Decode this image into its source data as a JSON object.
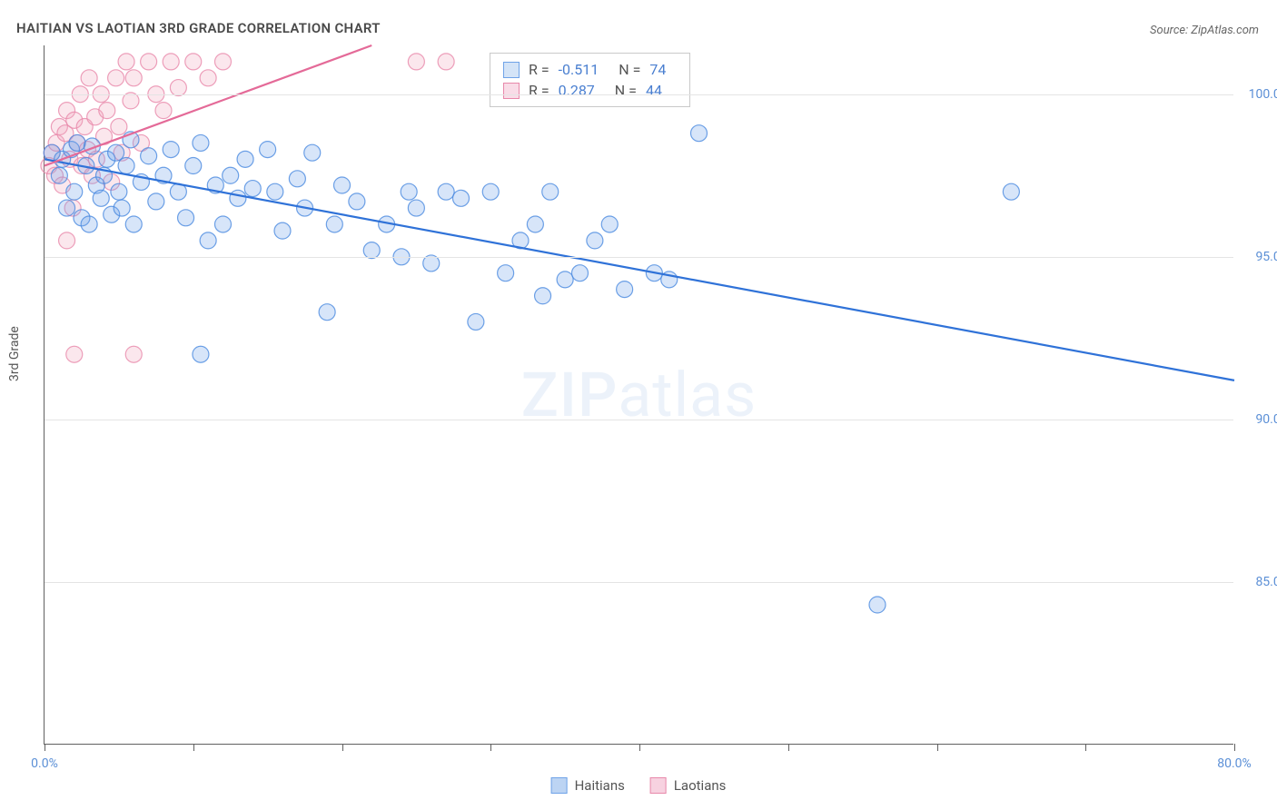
{
  "title": "HAITIAN VS LAOTIAN 3RD GRADE CORRELATION CHART",
  "source": "Source: ZipAtlas.com",
  "ylabel": "3rd Grade",
  "watermark_zip": "ZIP",
  "watermark_atlas": "atlas",
  "chart": {
    "type": "scatter",
    "xlim": [
      0,
      80
    ],
    "ylim": [
      80,
      101.5
    ],
    "x_ticks": [
      0,
      10,
      20,
      30,
      40,
      50,
      60,
      70,
      80
    ],
    "x_tick_labels": {
      "0": "0.0%",
      "80": "80.0%"
    },
    "y_gridlines": [
      85,
      90,
      95,
      100
    ],
    "y_tick_labels": {
      "85": "85.0%",
      "90": "90.0%",
      "95": "95.0%",
      "100": "100.0%"
    },
    "grid_color": "#e4e4e4",
    "axis_color": "#606060",
    "background_color": "#ffffff",
    "marker_radius": 9,
    "marker_fill_opacity": 0.28,
    "marker_stroke_opacity": 0.8,
    "marker_stroke_width": 1.2,
    "trend_line_width": 2.2,
    "series": [
      {
        "name": "Haitians",
        "color": "#6fa3e8",
        "stroke": "#4a8ae0",
        "trend_color": "#2f72d8",
        "R": "-0.511",
        "N": "74",
        "trend": {
          "x1": 0,
          "y1": 98.0,
          "x2": 80,
          "y2": 91.2
        },
        "points": [
          [
            0.5,
            98.2
          ],
          [
            1.0,
            97.5
          ],
          [
            1.2,
            98.0
          ],
          [
            1.5,
            96.5
          ],
          [
            1.8,
            98.3
          ],
          [
            2.0,
            97.0
          ],
          [
            2.2,
            98.5
          ],
          [
            2.5,
            96.2
          ],
          [
            2.8,
            97.8
          ],
          [
            3.0,
            96.0
          ],
          [
            3.2,
            98.4
          ],
          [
            3.5,
            97.2
          ],
          [
            3.8,
            96.8
          ],
          [
            4.0,
            97.5
          ],
          [
            4.2,
            98.0
          ],
          [
            4.5,
            96.3
          ],
          [
            4.8,
            98.2
          ],
          [
            5.0,
            97.0
          ],
          [
            5.2,
            96.5
          ],
          [
            5.5,
            97.8
          ],
          [
            5.8,
            98.6
          ],
          [
            6.0,
            96.0
          ],
          [
            6.5,
            97.3
          ],
          [
            7.0,
            98.1
          ],
          [
            7.5,
            96.7
          ],
          [
            8.0,
            97.5
          ],
          [
            8.5,
            98.3
          ],
          [
            9.0,
            97.0
          ],
          [
            9.5,
            96.2
          ],
          [
            10.0,
            97.8
          ],
          [
            10.5,
            98.5
          ],
          [
            11.0,
            95.5
          ],
          [
            11.5,
            97.2
          ],
          [
            12.0,
            96.0
          ],
          [
            12.5,
            97.5
          ],
          [
            13.0,
            96.8
          ],
          [
            13.5,
            98.0
          ],
          [
            14.0,
            97.1
          ],
          [
            15.0,
            98.3
          ],
          [
            15.5,
            97.0
          ],
          [
            16.0,
            95.8
          ],
          [
            17.0,
            97.4
          ],
          [
            17.5,
            96.5
          ],
          [
            18.0,
            98.2
          ],
          [
            19.0,
            93.3
          ],
          [
            19.5,
            96.0
          ],
          [
            20.0,
            97.2
          ],
          [
            21.0,
            96.7
          ],
          [
            22.0,
            95.2
          ],
          [
            23.0,
            96.0
          ],
          [
            24.0,
            95.0
          ],
          [
            24.5,
            97.0
          ],
          [
            25.0,
            96.5
          ],
          [
            26.0,
            94.8
          ],
          [
            27.0,
            97.0
          ],
          [
            28.0,
            96.8
          ],
          [
            29.0,
            93.0
          ],
          [
            30.0,
            97.0
          ],
          [
            31.0,
            94.5
          ],
          [
            32.0,
            95.5
          ],
          [
            33.0,
            96.0
          ],
          [
            33.5,
            93.8
          ],
          [
            34.0,
            97.0
          ],
          [
            35.0,
            94.3
          ],
          [
            36.0,
            94.5
          ],
          [
            37.0,
            95.5
          ],
          [
            38.0,
            96.0
          ],
          [
            39.0,
            94.0
          ],
          [
            41.0,
            94.5
          ],
          [
            42.0,
            94.3
          ],
          [
            44.0,
            98.8
          ],
          [
            56.0,
            84.3
          ],
          [
            65.0,
            97.0
          ],
          [
            10.5,
            92.0
          ]
        ]
      },
      {
        "name": "Laotians",
        "color": "#f0a8c0",
        "stroke": "#e888aa",
        "trend_color": "#e46a98",
        "R": "0.287",
        "N": "44",
        "trend": {
          "x1": 0,
          "y1": 97.8,
          "x2": 22,
          "y2": 101.5
        },
        "points": [
          [
            0.3,
            97.8
          ],
          [
            0.5,
            98.2
          ],
          [
            0.7,
            97.5
          ],
          [
            0.8,
            98.5
          ],
          [
            1.0,
            99.0
          ],
          [
            1.2,
            97.2
          ],
          [
            1.4,
            98.8
          ],
          [
            1.5,
            99.5
          ],
          [
            1.7,
            98.0
          ],
          [
            1.9,
            96.5
          ],
          [
            2.0,
            99.2
          ],
          [
            2.2,
            98.5
          ],
          [
            2.4,
            100.0
          ],
          [
            2.5,
            97.8
          ],
          [
            2.7,
            99.0
          ],
          [
            2.9,
            98.3
          ],
          [
            3.0,
            100.5
          ],
          [
            3.2,
            97.5
          ],
          [
            3.4,
            99.3
          ],
          [
            3.5,
            98.0
          ],
          [
            3.8,
            100.0
          ],
          [
            4.0,
            98.7
          ],
          [
            4.2,
            99.5
          ],
          [
            4.5,
            97.3
          ],
          [
            4.8,
            100.5
          ],
          [
            5.0,
            99.0
          ],
          [
            5.2,
            98.2
          ],
          [
            5.5,
            101.0
          ],
          [
            5.8,
            99.8
          ],
          [
            6.0,
            100.5
          ],
          [
            6.5,
            98.5
          ],
          [
            7.0,
            101.0
          ],
          [
            7.5,
            100.0
          ],
          [
            8.0,
            99.5
          ],
          [
            8.5,
            101.0
          ],
          [
            9.0,
            100.2
          ],
          [
            10.0,
            101.0
          ],
          [
            11.0,
            100.5
          ],
          [
            12.0,
            101.0
          ],
          [
            1.5,
            95.5
          ],
          [
            2.0,
            92.0
          ],
          [
            6.0,
            92.0
          ],
          [
            25.0,
            101.0
          ],
          [
            27.0,
            101.0
          ]
        ]
      }
    ]
  },
  "bottom_legend": [
    {
      "label": "Haitians",
      "fill": "#bcd4f3",
      "border": "#6fa3e8"
    },
    {
      "label": "Laotians",
      "fill": "#f7d2e0",
      "border": "#e888aa"
    }
  ],
  "stats_legend": [
    {
      "fill": "#d4e4f7",
      "border": "#6fa3e8",
      "R": "-0.511",
      "N": "74"
    },
    {
      "fill": "#f9dce7",
      "border": "#e888aa",
      "R": "0.287",
      "N": "44"
    }
  ]
}
